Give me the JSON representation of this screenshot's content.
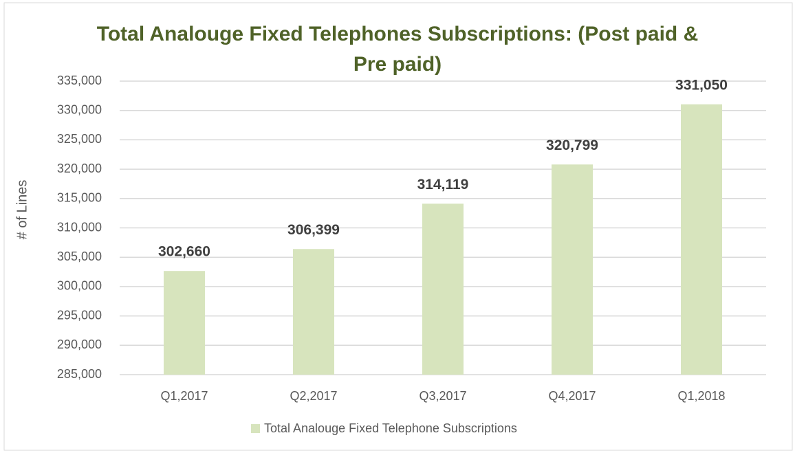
{
  "chart_data": {
    "type": "bar",
    "title": "Total Analouge Fixed Telephones Subscriptions: (Post paid & Pre paid)",
    "y_label": "# of Lines",
    "categories": [
      "Q1,2017",
      "Q2,2017",
      "Q3,2017",
      "Q4,2017",
      "Q1,2018"
    ],
    "series": [
      {
        "name": "Total Analouge Fixed Telephone Subscriptions",
        "color": "#d7e4bd",
        "values": [
          302660,
          306399,
          314119,
          320799,
          331050
        ],
        "value_labels": [
          "302,660",
          "306,399",
          "314,119",
          "320,799",
          "331,050"
        ]
      }
    ],
    "ylim": [
      285000,
      335000
    ],
    "yticks": [
      {
        "value": 285000,
        "label": "285,000"
      },
      {
        "value": 290000,
        "label": "290,000"
      },
      {
        "value": 295000,
        "label": "295,000"
      },
      {
        "value": 300000,
        "label": "300,000"
      },
      {
        "value": 305000,
        "label": "305,000"
      },
      {
        "value": 310000,
        "label": "310,000"
      },
      {
        "value": 315000,
        "label": "315,000"
      },
      {
        "value": 320000,
        "label": "320,000"
      },
      {
        "value": 325000,
        "label": "325,000"
      },
      {
        "value": 330000,
        "label": "330,000"
      },
      {
        "value": 335000,
        "label": "335,000"
      }
    ],
    "grid": true,
    "legend": "bottom"
  }
}
